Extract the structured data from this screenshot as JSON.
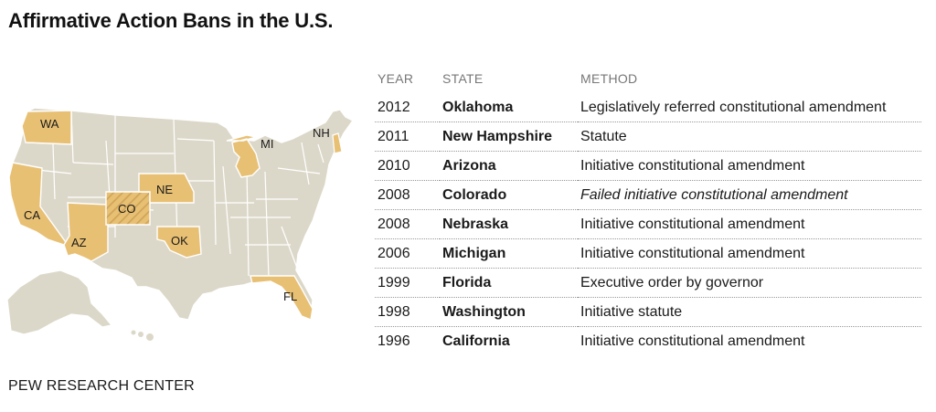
{
  "title": "Affirmative Action Bans in the U.S.",
  "source": "PEW RESEARCH CENTER",
  "colors": {
    "ban_state": "#e8c074",
    "other_state": "#dcd8c9",
    "state_border": "#ffffff",
    "failed_hatch": "#cfa55a"
  },
  "map": {
    "labels": {
      "wa": "WA",
      "ca": "CA",
      "az": "AZ",
      "co": "CO",
      "ne": "NE",
      "ok": "OK",
      "mi": "MI",
      "nh": "NH",
      "fl": "FL"
    }
  },
  "table": {
    "headers": {
      "year": "YEAR",
      "state": "STATE",
      "method": "METHOD"
    },
    "rows": [
      {
        "year": "2012",
        "state": "Oklahoma",
        "method": "Legislatively referred constitutional amendment",
        "failed": false
      },
      {
        "year": "2011",
        "state": "New Hampshire",
        "method": "Statute",
        "failed": false
      },
      {
        "year": "2010",
        "state": "Arizona",
        "method": "Initiative constitutional amendment",
        "failed": false
      },
      {
        "year": "2008",
        "state": "Colorado",
        "method": "Failed initiative constitutional amendment",
        "failed": true
      },
      {
        "year": "2008",
        "state": "Nebraska",
        "method": "Initiative constitutional amendment",
        "failed": false
      },
      {
        "year": "2006",
        "state": "Michigan",
        "method": "Initiative constitutional amendment",
        "failed": false
      },
      {
        "year": "1999",
        "state": "Florida",
        "method": "Executive order by governor",
        "failed": false
      },
      {
        "year": "1998",
        "state": "Washington",
        "method": "Initiative statute",
        "failed": false
      },
      {
        "year": "1996",
        "state": "California",
        "method": "Initiative constitutional amendment",
        "failed": false
      }
    ]
  },
  "chart_data": {
    "type": "table",
    "title": "Affirmative Action Bans in the U.S.",
    "columns": [
      "YEAR",
      "STATE",
      "METHOD"
    ],
    "rows": [
      [
        "2012",
        "Oklahoma",
        "Legislatively referred constitutional amendment"
      ],
      [
        "2011",
        "New Hampshire",
        "Statute"
      ],
      [
        "2010",
        "Arizona",
        "Initiative constitutional amendment"
      ],
      [
        "2008",
        "Colorado",
        "Failed initiative constitutional amendment"
      ],
      [
        "2008",
        "Nebraska",
        "Initiative constitutional amendment"
      ],
      [
        "2006",
        "Michigan",
        "Initiative constitutional amendment"
      ],
      [
        "1999",
        "Florida",
        "Executive order by governor"
      ],
      [
        "1998",
        "Washington",
        "Initiative statute"
      ],
      [
        "1996",
        "California",
        "Initiative constitutional amendment"
      ]
    ]
  }
}
